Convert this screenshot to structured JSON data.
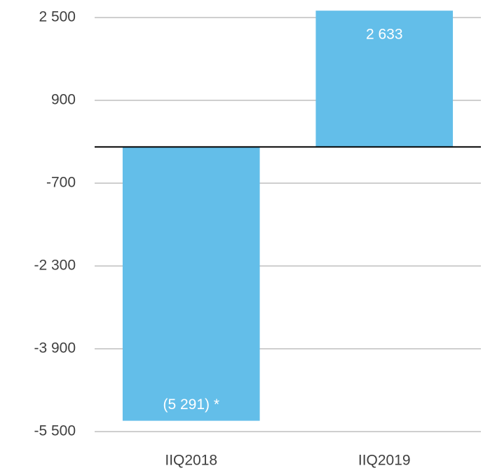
{
  "chart_data": {
    "type": "bar",
    "categories": [
      "IIQ2018",
      "IIQ2019"
    ],
    "values": [
      -5291,
      2633
    ],
    "value_labels": [
      "(5 291) *",
      "2 633"
    ],
    "color": "#63bee9",
    "ylim": [
      -5500,
      2500
    ],
    "yticks": [
      {
        "value": -5500,
        "label": "-5 500"
      },
      {
        "value": -3900,
        "label": "-3 900"
      },
      {
        "value": -2300,
        "label": "-2 300"
      },
      -700,
      900,
      {
        "value": 2500,
        "label": "2 500"
      }
    ],
    "grid": true
  }
}
